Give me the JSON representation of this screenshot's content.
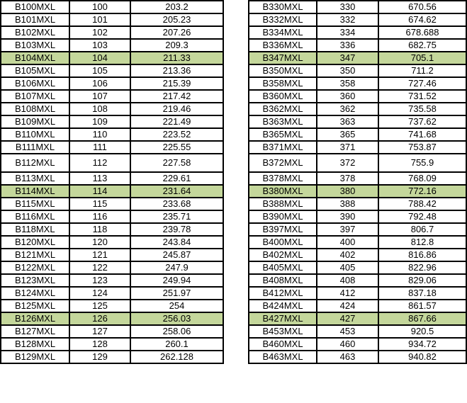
{
  "highlight_color": "#c4d79b",
  "tables": [
    {
      "rows": [
        {
          "part": "B100MXL",
          "teeth": "100",
          "length": "203.2"
        },
        {
          "part": "B101MXL",
          "teeth": "101",
          "length": "205.23"
        },
        {
          "part": "B102MXL",
          "teeth": "102",
          "length": "207.26"
        },
        {
          "part": "B103MXL",
          "teeth": "103",
          "length": "209.3"
        },
        {
          "part": "B104MXL",
          "teeth": "104",
          "length": "211.33",
          "highlighted": true
        },
        {
          "part": "B105MXL",
          "teeth": "105",
          "length": "213.36"
        },
        {
          "part": "B106MXL",
          "teeth": "106",
          "length": "215.39"
        },
        {
          "part": "B107MXL",
          "teeth": "107",
          "length": "217.42"
        },
        {
          "part": "B108MXL",
          "teeth": "108",
          "length": "219.46"
        },
        {
          "part": "B109MXL",
          "teeth": "109",
          "length": "221.49"
        },
        {
          "part": "B110MXL",
          "teeth": "110",
          "length": "223.52"
        },
        {
          "part": "B111MXL",
          "teeth": "111",
          "length": "225.55"
        },
        {
          "part": "B112MXL",
          "teeth": "112",
          "length": "227.58"
        },
        {
          "part": "B113MXL",
          "teeth": "113",
          "length": "229.61"
        },
        {
          "part": "B114MXL",
          "teeth": "114",
          "length": "231.64",
          "highlighted": true
        },
        {
          "part": "B115MXL",
          "teeth": "115",
          "length": "233.68"
        },
        {
          "part": "B116MXL",
          "teeth": "116",
          "length": "235.71"
        },
        {
          "part": "B118MXL",
          "teeth": "118",
          "length": "239.78"
        },
        {
          "part": "B120MXL",
          "teeth": "120",
          "length": "243.84"
        },
        {
          "part": "B121MXL",
          "teeth": "121",
          "length": "245.87"
        },
        {
          "part": "B122MXL",
          "teeth": "122",
          "length": "247.9"
        },
        {
          "part": "B123MXL",
          "teeth": "123",
          "length": "249.94"
        },
        {
          "part": "B124MXL",
          "teeth": "124",
          "length": "251.97"
        },
        {
          "part": "B125MXL",
          "teeth": "125",
          "length": "254"
        },
        {
          "part": "B126MXL",
          "teeth": "126",
          "length": "256.03",
          "highlighted": true
        },
        {
          "part": "B127MXL",
          "teeth": "127",
          "length": "258.06"
        },
        {
          "part": "B128MXL",
          "teeth": "128",
          "length": "260.1"
        },
        {
          "part": "B129MXL",
          "teeth": "129",
          "length": "262.128"
        }
      ]
    },
    {
      "rows": [
        {
          "part": "B330MXL",
          "teeth": "330",
          "length": "670.56"
        },
        {
          "part": "B332MXL",
          "teeth": "332",
          "length": "674.62"
        },
        {
          "part": "B334MXL",
          "teeth": "334",
          "length": "678.688"
        },
        {
          "part": "B336MXL",
          "teeth": "336",
          "length": "682.75"
        },
        {
          "part": "B347MXL",
          "teeth": "347",
          "length": "705.1",
          "highlighted": true
        },
        {
          "part": "B350MXL",
          "teeth": "350",
          "length": "711.2"
        },
        {
          "part": "B358MXL",
          "teeth": "358",
          "length": "727.46"
        },
        {
          "part": "B360MXL",
          "teeth": "360",
          "length": "731.52"
        },
        {
          "part": "B362MXL",
          "teeth": "362",
          "length": "735.58"
        },
        {
          "part": "B363MXL",
          "teeth": "363",
          "length": "737.62"
        },
        {
          "part": "B365MXL",
          "teeth": "365",
          "length": "741.68"
        },
        {
          "part": "B371MXL",
          "teeth": "371",
          "length": "753.87"
        },
        {
          "part": "B372MXL",
          "teeth": "372",
          "length": "755.9"
        },
        {
          "part": "B378MXL",
          "teeth": "378",
          "length": "768.09"
        },
        {
          "part": "B380MXL",
          "teeth": "380",
          "length": "772.16",
          "highlighted": true
        },
        {
          "part": "B388MXL",
          "teeth": "388",
          "length": "788.42"
        },
        {
          "part": "B390MXL",
          "teeth": "390",
          "length": "792.48"
        },
        {
          "part": "B397MXL",
          "teeth": "397",
          "length": "806.7"
        },
        {
          "part": "B400MXL",
          "teeth": "400",
          "length": "812.8"
        },
        {
          "part": "B402MXL",
          "teeth": "402",
          "length": "816.86"
        },
        {
          "part": "B405MXL",
          "teeth": "405",
          "length": "822.96"
        },
        {
          "part": "B408MXL",
          "teeth": "408",
          "length": "829.06"
        },
        {
          "part": "B412MXL",
          "teeth": "412",
          "length": "837.18"
        },
        {
          "part": "B424MXL",
          "teeth": "424",
          "length": "861.57"
        },
        {
          "part": "B427MXL",
          "teeth": "427",
          "length": "867.66",
          "highlighted": true
        },
        {
          "part": "B453MXL",
          "teeth": "453",
          "length": "920.5"
        },
        {
          "part": "B460MXL",
          "teeth": "460",
          "length": "934.72"
        },
        {
          "part": "B463MXL",
          "teeth": "463",
          "length": "940.82"
        }
      ]
    }
  ]
}
